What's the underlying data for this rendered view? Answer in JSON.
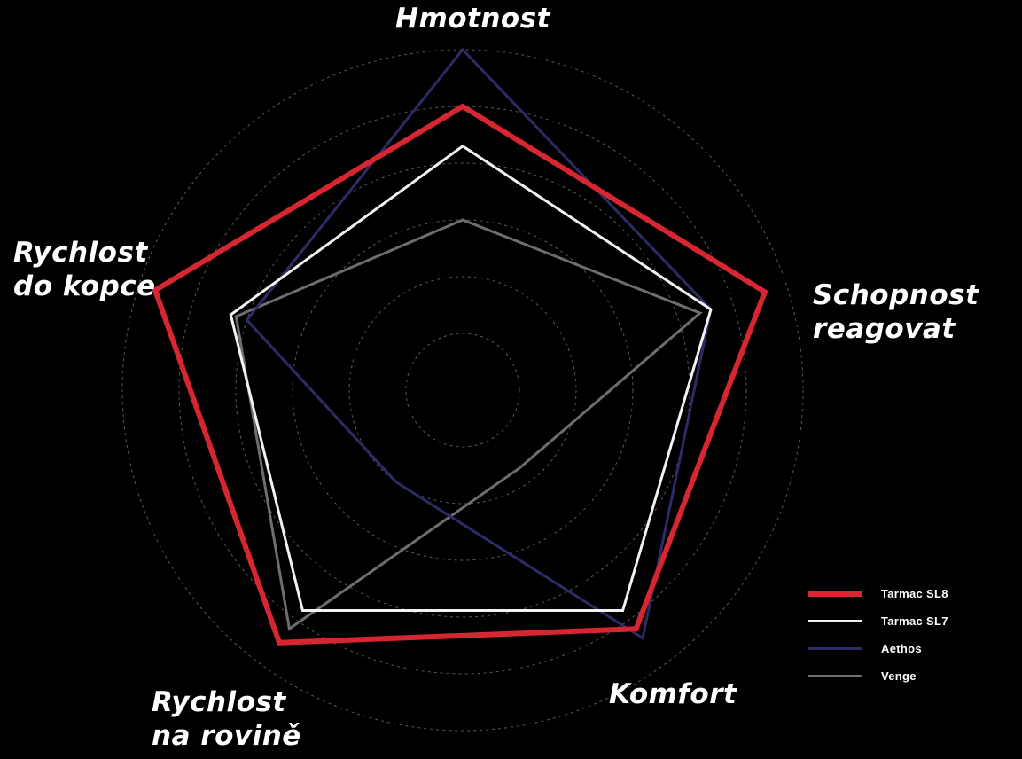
{
  "chart_data": {
    "type": "radar",
    "axes": [
      {
        "id": "hmotnost",
        "lines": [
          "Hmotnost"
        ]
      },
      {
        "id": "schopnost",
        "lines": [
          "Schopnost",
          "reagovat"
        ]
      },
      {
        "id": "komfort",
        "lines": [
          "Komfort"
        ]
      },
      {
        "id": "rovina",
        "lines": [
          "Rychlost",
          "na rovině"
        ]
      },
      {
        "id": "kopec",
        "lines": [
          "Rychlost",
          "do kopce"
        ]
      }
    ],
    "rings": 6,
    "max": 6,
    "grid": true,
    "legend_position": "bottom-right",
    "series": [
      {
        "name": "Tarmac SL8",
        "color": "#d62631",
        "width": 6,
        "values": [
          5.0,
          5.6,
          5.2,
          5.5,
          5.7
        ]
      },
      {
        "name": "Tarmac SL7",
        "color": "#f2f2f2",
        "width": 3,
        "values": [
          4.3,
          4.6,
          4.8,
          4.8,
          4.3
        ]
      },
      {
        "name": "Aethos",
        "color": "#2c2c66",
        "width": 3,
        "values": [
          6.0,
          4.6,
          5.4,
          2.0,
          4.0
        ]
      },
      {
        "name": "Venge",
        "color": "#6e6e6e",
        "width": 3,
        "values": [
          3.0,
          4.4,
          1.7,
          5.2,
          4.2
        ]
      }
    ]
  }
}
